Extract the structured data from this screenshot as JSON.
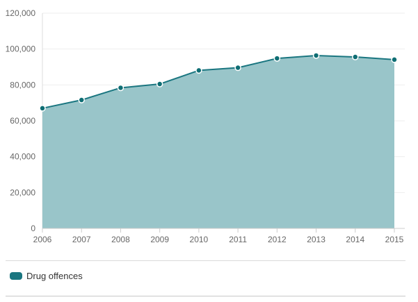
{
  "chart_data": {
    "type": "area",
    "x": [
      "2006",
      "2007",
      "2008",
      "2009",
      "2010",
      "2011",
      "2012",
      "2013",
      "2014",
      "2015"
    ],
    "series": [
      {
        "name": "Drug offences",
        "values": [
          67000,
          71600,
          78400,
          80500,
          88100,
          89600,
          94800,
          96400,
          95600,
          94100
        ]
      }
    ],
    "y_ticks": [
      "0",
      "20,000",
      "40,000",
      "60,000",
      "80,000",
      "100,000",
      "120,000"
    ],
    "ylim": [
      0,
      120000
    ],
    "grid": true,
    "legend_position": "bottom-left",
    "colors": {
      "line": "#1a7680",
      "fill": "#99c5c9",
      "marker": "#0f6e74",
      "grid": "#eeeeee"
    }
  }
}
